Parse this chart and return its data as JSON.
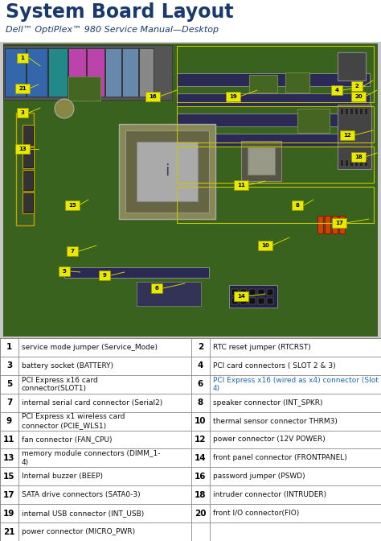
{
  "title": "System Board Layout",
  "subtitle": "Dell™ OptiPlex™ 980 Service Manual—Desktop",
  "title_color": "#1a3a6b",
  "subtitle_color": "#1a3a6b",
  "table_rows": [
    {
      "num1": "1",
      "desc1": "service mode jumper (Service_Mode)",
      "num2": "2",
      "desc2": "RTC reset jumper (RTCRST)",
      "highlight2": ""
    },
    {
      "num1": "3",
      "desc1": "battery socket (BATTERY)",
      "num2": "4",
      "desc2": "PCI card connectors ( SLOT 2 & 3)",
      "highlight2": ""
    },
    {
      "num1": "5",
      "desc1": "PCI Express x16 card\nconnector(SLOT1)",
      "num2": "6",
      "desc2": "PCI Express x16 (wired as x4) connector (Slot\n4)",
      "highlight2": "PCI Express x16 (wired as x4)"
    },
    {
      "num1": "7",
      "desc1": "internal serial card connector (Serial2)",
      "num2": "8",
      "desc2": "speaker connector (INT_SPKR)",
      "highlight2": ""
    },
    {
      "num1": "9",
      "desc1": "PCI Express x1 wireless card\nconnector (PCIE_WLS1)",
      "num2": "10",
      "desc2": "thermal sensor connector THRM3)",
      "highlight2": ""
    },
    {
      "num1": "11",
      "desc1": "fan connector (FAN_CPU)",
      "num2": "12",
      "desc2": "power connector (12V POWER)",
      "highlight2": ""
    },
    {
      "num1": "13",
      "desc1": "memory module connectors (DIMM_1-\n4)",
      "num2": "14",
      "desc2": "front panel connector (FRONTPANEL)",
      "highlight2": ""
    },
    {
      "num1": "15",
      "desc1": "Internal buzzer (BEEP)",
      "num2": "16",
      "desc2": "password jumper (PSWD)",
      "highlight2": ""
    },
    {
      "num1": "17",
      "desc1": "SATA drive connectors (SATA0-3)",
      "num2": "18",
      "desc2": "intruder connector (INTRUDER)",
      "highlight2": ""
    },
    {
      "num1": "19",
      "desc1": "internal USB connector (INT_USB)",
      "num2": "20",
      "desc2": "front I/O connector(FIO)",
      "highlight2": ""
    },
    {
      "num1": "21",
      "desc1": "power connector (MICRO_PWR)",
      "num2": "",
      "desc2": "",
      "highlight2": ""
    }
  ],
  "border_color": "#888888",
  "highlight_color": "#1a6bb5",
  "fig_width": 4.74,
  "fig_height": 6.72,
  "board_bg": "#3d6b22",
  "board_edge": "#2a4a18",
  "pcb_green": "#4a7a28",
  "pcb_dark": "#2d5018",
  "yellow_label": "#e8e800",
  "title_fontsize": 17,
  "subtitle_fontsize": 8,
  "table_fontsize": 6.5,
  "num_fontsize": 7.5
}
